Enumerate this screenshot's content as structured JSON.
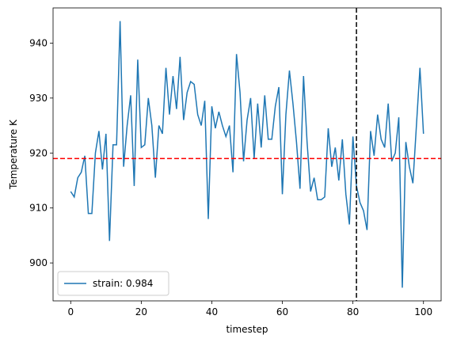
{
  "chart_data": {
    "type": "line",
    "xlabel": "timestep",
    "ylabel": "Temperature K",
    "x": [
      0,
      1,
      2,
      3,
      4,
      5,
      6,
      7,
      8,
      9,
      10,
      11,
      12,
      13,
      14,
      15,
      16,
      17,
      18,
      19,
      20,
      21,
      22,
      23,
      24,
      25,
      26,
      27,
      28,
      29,
      30,
      31,
      32,
      33,
      34,
      35,
      36,
      37,
      38,
      39,
      40,
      41,
      42,
      43,
      44,
      45,
      46,
      47,
      48,
      49,
      50,
      51,
      52,
      53,
      54,
      55,
      56,
      57,
      58,
      59,
      60,
      61,
      62,
      63,
      64,
      65,
      66,
      67,
      68,
      69,
      70,
      71,
      72,
      73,
      74,
      75,
      76,
      77,
      78,
      79,
      80,
      81,
      82,
      83,
      84,
      85,
      86,
      87,
      88,
      89,
      90,
      91,
      92,
      93,
      94,
      95,
      96,
      97,
      98,
      99,
      100
    ],
    "series": [
      {
        "name": "strain: 0.984",
        "color": "#1f77b4",
        "values": [
          913,
          912,
          915.5,
          916.5,
          919.5,
          909,
          909,
          920,
          924,
          917,
          923.5,
          904,
          921.5,
          921.5,
          944,
          917.5,
          925,
          930.5,
          914,
          937,
          921,
          921.5,
          930,
          925,
          915.5,
          925,
          923.5,
          935.5,
          927,
          934,
          928,
          937.5,
          926,
          931,
          933,
          932.5,
          927,
          925,
          929.5,
          908,
          928.5,
          924.5,
          927.5,
          925,
          923,
          925,
          916.5,
          938,
          931,
          918.5,
          926,
          930,
          919,
          929,
          921,
          930.5,
          922.5,
          922.5,
          928.5,
          932,
          912.5,
          927,
          935,
          929,
          922,
          913.5,
          934,
          922,
          913,
          915.5,
          911.5,
          911.5,
          912,
          924.5,
          917.5,
          921,
          915,
          922.5,
          912.5,
          907,
          923,
          914,
          911,
          909.5,
          906,
          924,
          919.5,
          927,
          922.5,
          921,
          929,
          918.5,
          920,
          926.5,
          895.5,
          922,
          917.5,
          914.5,
          925,
          935.5,
          923.5
        ]
      }
    ],
    "hline": {
      "value": 919,
      "color": "#ff0000"
    },
    "vline": {
      "value": 81,
      "color": "#000000"
    },
    "xlim": [
      -5,
      105
    ],
    "ylim": [
      893.1,
      946.4
    ],
    "xticks": [
      0,
      20,
      40,
      60,
      80,
      100
    ],
    "yticks": [
      900,
      910,
      920,
      930,
      940
    ],
    "legend": "lower left"
  }
}
